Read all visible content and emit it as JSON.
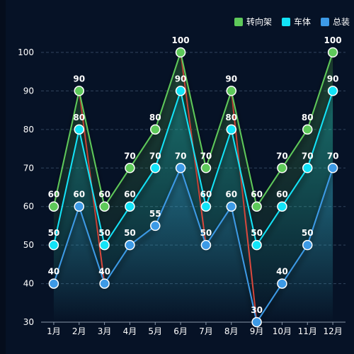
{
  "chart_data": {
    "type": "line",
    "title": "",
    "xlabel": "",
    "ylabel": "",
    "categories": [
      "1月",
      "2月",
      "3月",
      "4月",
      "5月",
      "6月",
      "7月",
      "8月",
      "9月",
      "10月",
      "11月",
      "12月"
    ],
    "ylim": [
      30,
      100
    ],
    "yticks": [
      30,
      40,
      50,
      60,
      70,
      80,
      90,
      100
    ],
    "grid": "horizontal dashed",
    "legend_position": "top-right",
    "series": [
      {
        "name": "转向架",
        "color": "#5ec95a",
        "values": [
          60,
          90,
          60,
          70,
          80,
          100,
          70,
          90,
          60,
          70,
          80,
          100
        ]
      },
      {
        "name": "车体",
        "color": "#12e3f7",
        "values": [
          50,
          80,
          50,
          60,
          70,
          90,
          60,
          80,
          50,
          60,
          70,
          90
        ]
      },
      {
        "name": "总装",
        "color": "#3d9ae6",
        "values": [
          40,
          60,
          40,
          50,
          55,
          70,
          50,
          60,
          30,
          40,
          50,
          70
        ]
      }
    ],
    "connector_color": "#e04a3e"
  }
}
